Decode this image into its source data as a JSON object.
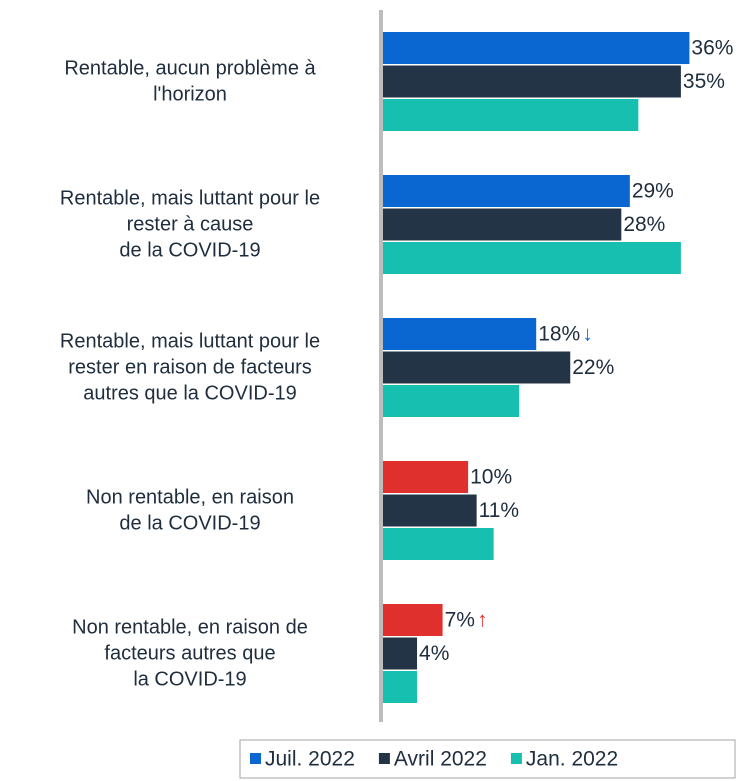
{
  "chart_data": {
    "type": "bar",
    "orientation": "horizontal",
    "categories": [
      [
        "Rentable, aucun problème à",
        "l'horizon"
      ],
      [
        "Rentable, mais luttant pour le",
        "rester à cause",
        "de la COVID-19"
      ],
      [
        "Rentable, mais luttant pour le",
        "rester en raison de facteurs",
        "autres que la COVID-19"
      ],
      [
        "Non rentable, en raison",
        "de la COVID-19"
      ],
      [
        "Non rentable, en raison de",
        "facteurs autres que",
        "la COVID-19"
      ]
    ],
    "series": [
      {
        "name": "Juil. 2022",
        "color": "#0a66d0",
        "colors": [
          "#0a66d0",
          "#0a66d0",
          "#0a66d0",
          "#e0302d",
          "#e0302d"
        ],
        "values": [
          36,
          29,
          18,
          10,
          7
        ],
        "value_labels": [
          "36%",
          "29%",
          "18%",
          "10%",
          "7%"
        ]
      },
      {
        "name": "Avril 2022",
        "color": "#243447",
        "values": [
          35,
          28,
          22,
          11,
          4
        ],
        "value_labels": [
          "35%",
          "28%",
          "22%",
          "11%",
          "4%"
        ]
      },
      {
        "name": "Jan. 2022",
        "color": "#17bfb1",
        "values": [
          30,
          35,
          16,
          13,
          4
        ]
      }
    ],
    "annotations": [
      {
        "text": "↓",
        "color": "#0a66d0",
        "series": 0,
        "point": 2
      },
      {
        "text": "↑",
        "color": "#e0302d",
        "series": 0,
        "point": 4
      }
    ],
    "xlim": [
      0,
      43
    ],
    "legend": "bottom-right"
  }
}
